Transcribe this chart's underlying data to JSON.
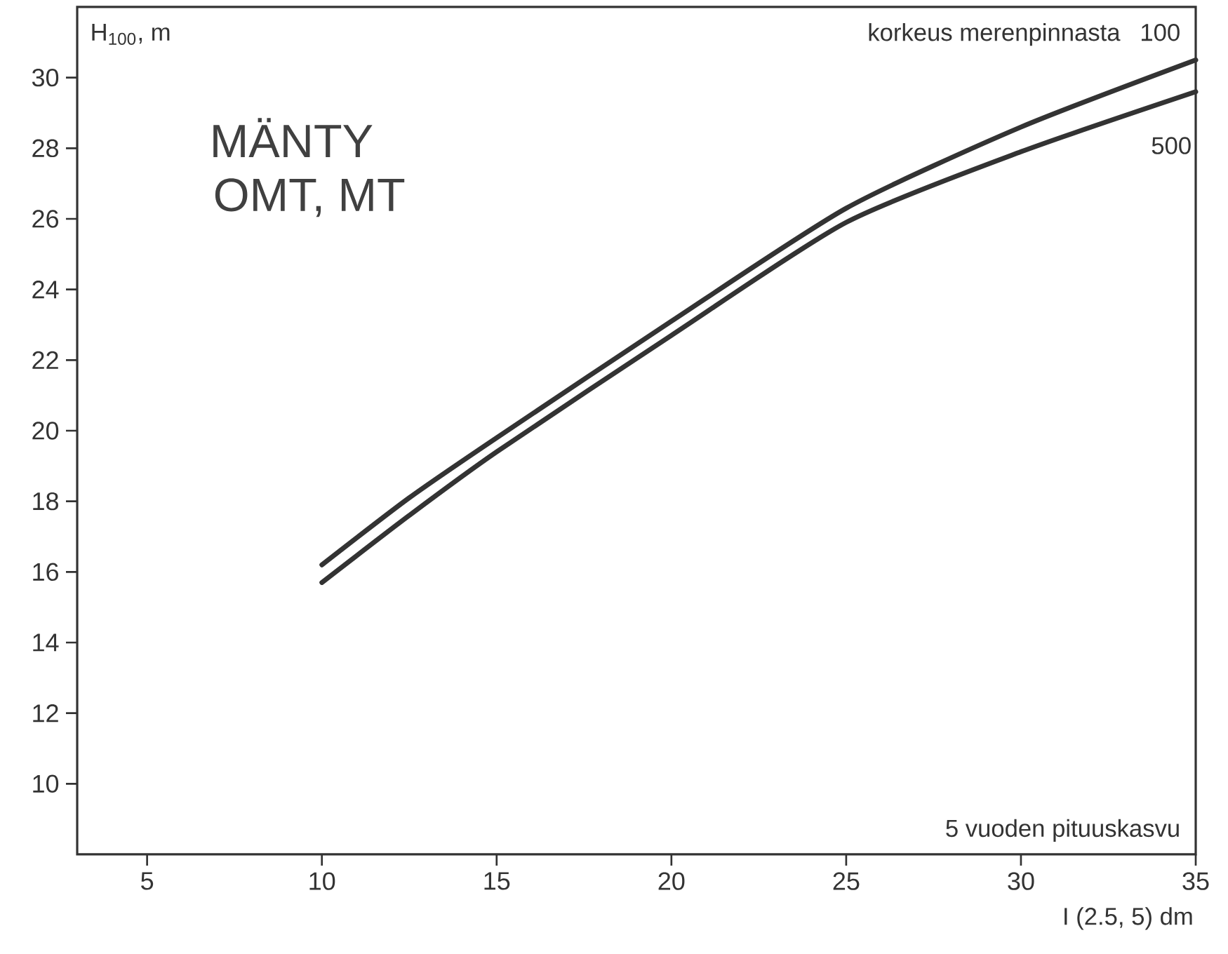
{
  "chart_data": {
    "type": "line",
    "title": "MÄNTY",
    "subtitle": "OMT, MT",
    "xlabel": "I (2.5, 5) dm",
    "ylabel": "H$_{100}$, m",
    "annotations": [
      "korkeus merenpinnasta",
      "5 vuoden pituuskasvu"
    ],
    "x": [
      10,
      12.5,
      15,
      20,
      25,
      30,
      35
    ],
    "series": [
      {
        "name": "100",
        "color": "#333333",
        "values": [
          16.2,
          18.1,
          19.8,
          23.1,
          26.3,
          28.6,
          30.5
        ]
      },
      {
        "name": "500",
        "color": "#333333",
        "values": [
          15.7,
          17.6,
          19.4,
          22.7,
          25.9,
          27.9,
          29.6
        ]
      }
    ],
    "xlim": [
      3,
      35
    ],
    "ylim": [
      8,
      32
    ],
    "xticks": [
      5,
      10,
      15,
      20,
      25,
      30,
      35
    ],
    "yticks": [
      10,
      12,
      14,
      16,
      18,
      20,
      22,
      24,
      26,
      28,
      30
    ]
  }
}
